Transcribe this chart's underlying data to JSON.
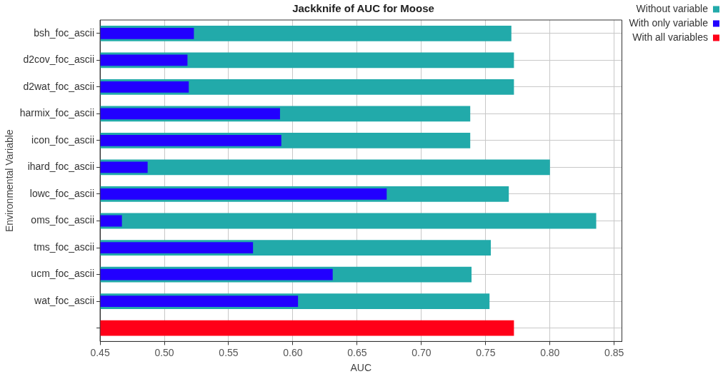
{
  "chart_data": {
    "type": "bar",
    "orientation": "horizontal",
    "title": "Jackknife of AUC for Moose",
    "xlabel": "AUC",
    "ylabel": "Environmental Variable",
    "categories": [
      "bsh_foc_ascii",
      "d2cov_foc_ascii",
      "d2wat_foc_ascii",
      "harmix_foc_ascii",
      "icon_foc_ascii",
      "ihard_foc_ascii",
      "lowc_foc_ascii",
      "oms_foc_ascii",
      "tms_foc_ascii",
      "ucm_foc_ascii",
      "wat_foc_ascii",
      null
    ],
    "series": [
      {
        "name": "Without variable",
        "color": "#22aaaa",
        "values": [
          0.77,
          0.772,
          0.772,
          0.738,
          0.738,
          0.8,
          0.768,
          0.836,
          0.754,
          0.739,
          0.753,
          null
        ]
      },
      {
        "name": "With only variable",
        "color": "#2200ff",
        "values": [
          0.523,
          0.518,
          0.519,
          0.59,
          0.591,
          0.487,
          0.673,
          0.467,
          0.569,
          0.631,
          0.604,
          null
        ]
      },
      {
        "name": "With all variables",
        "color": "#ff0018",
        "values": [
          null,
          null,
          null,
          null,
          null,
          null,
          null,
          null,
          null,
          null,
          null,
          0.772
        ]
      }
    ],
    "xlim": [
      0.45,
      0.856
    ],
    "xticks": [
      0.45,
      {
        "value": 0.5,
        "label": "0.50"
      },
      0.55,
      {
        "value": 0.6,
        "label": "0.60"
      },
      0.65,
      {
        "value": 0.7,
        "label": "0.70"
      },
      0.75,
      {
        "value": 0.8,
        "label": "0.80"
      },
      0.85
    ],
    "grid": true,
    "legend": "top right"
  }
}
